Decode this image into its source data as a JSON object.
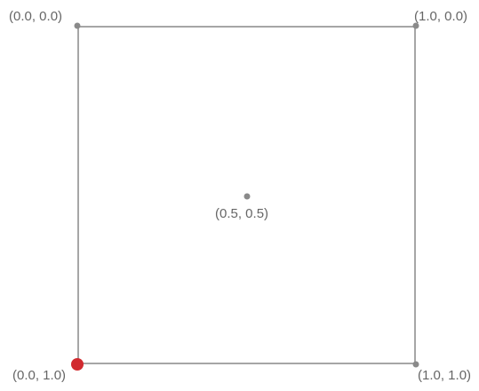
{
  "diagram": {
    "points": [
      {
        "label": "(0.0, 0.0)",
        "x": 0.0,
        "y": 0.0,
        "highlight": false
      },
      {
        "label": "(1.0, 0.0)",
        "x": 1.0,
        "y": 0.0,
        "highlight": false
      },
      {
        "label": "(0.5, 0.5)",
        "x": 0.5,
        "y": 0.5,
        "highlight": false
      },
      {
        "label": "(0.0, 1.0)",
        "x": 0.0,
        "y": 1.0,
        "highlight": true
      },
      {
        "label": "(1.0, 1.0)",
        "x": 1.0,
        "y": 1.0,
        "highlight": false
      }
    ],
    "colors": {
      "frame": "#a6a6a6",
      "point": "#8a8a8a",
      "highlight": "#d12a2f",
      "label": "#666666"
    }
  }
}
